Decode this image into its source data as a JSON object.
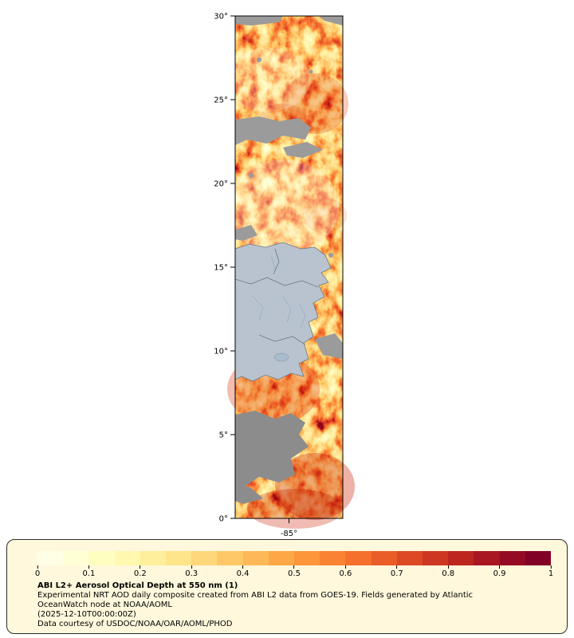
{
  "map": {
    "lat_tick_labels": [
      "30°",
      "25°",
      "20°",
      "15°",
      "10°",
      "5°",
      "0°"
    ],
    "lon_tick_label": "-85°",
    "land_color": "#b9c3cf",
    "missing_data_color": "#8f8f8f"
  },
  "colorbar": {
    "tick_labels": [
      "0",
      "0.1",
      "0.2",
      "0.3",
      "0.4",
      "0.5",
      "0.6",
      "0.7",
      "0.8",
      "0.9",
      "1"
    ],
    "values": [
      0,
      0.1,
      0.2,
      0.3,
      0.4,
      0.5,
      0.6,
      0.7,
      0.8,
      0.9,
      1
    ],
    "colors": [
      "#ffffe5",
      "#ffffd5",
      "#fffec1",
      "#fff8ae",
      "#feef9c",
      "#fee48b",
      "#fed77a",
      "#fec868",
      "#feb857",
      "#fda847",
      "#fc963b",
      "#f98332",
      "#f4702c",
      "#ea5c28",
      "#dd4924",
      "#cd3721",
      "#bc261f",
      "#a81722",
      "#940a24",
      "#800026"
    ]
  },
  "legend": {
    "title": "ABI L2+ Aerosol Optical Depth at 550 nm (1)",
    "description": "Experimental NRT AOD daily composite created from ABI L2 data from GOES-19. Fields generated by Atlantic OceanWatch node at NOAA/AOML",
    "timestamp": "(2025-12-10T00:00:00Z)",
    "courtesy": "Data courtesy of USDOC/NOAA/OAR/AOML/PHOD"
  }
}
